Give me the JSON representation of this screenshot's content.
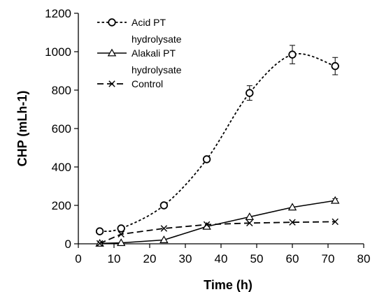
{
  "chart_data": {
    "type": "line",
    "xlabel": "Time (h)",
    "ylabel": "CHP (mLh-1)",
    "xlim": [
      0,
      80
    ],
    "ylim": [
      0,
      1200
    ],
    "x_ticks": [
      0,
      10,
      20,
      30,
      40,
      50,
      60,
      70,
      80
    ],
    "y_ticks": [
      0,
      200,
      400,
      600,
      800,
      1000,
      1200
    ],
    "grid": false,
    "legend_position": "top-left",
    "series": [
      {
        "name": "Acid PT hydrolysate",
        "name_lines": [
          "Acid PT",
          "hydrolysate"
        ],
        "line_style": "dotted",
        "marker": "circle",
        "x": [
          6,
          12,
          24,
          36,
          48,
          60,
          72
        ],
        "y": [
          65,
          80,
          200,
          440,
          785,
          985,
          925
        ],
        "error": [
          0,
          0,
          0,
          0,
          38,
          48,
          45
        ]
      },
      {
        "name": "Alakali PT hydrolysate",
        "name_lines": [
          "Alakali PT",
          "hydrolysate"
        ],
        "line_style": "solid",
        "marker": "triangle",
        "x": [
          6,
          12,
          24,
          36,
          48,
          60,
          72
        ],
        "y": [
          2,
          5,
          20,
          90,
          140,
          190,
          225
        ],
        "error": [
          0,
          0,
          0,
          0,
          0,
          0,
          10
        ]
      },
      {
        "name": "Control",
        "name_lines": [
          "Control"
        ],
        "line_style": "dashed",
        "marker": "x",
        "x": [
          6,
          12,
          24,
          36,
          48,
          60,
          72
        ],
        "y": [
          2,
          50,
          80,
          100,
          108,
          112,
          115
        ],
        "error": [
          0,
          0,
          0,
          0,
          0,
          0,
          0
        ]
      }
    ]
  }
}
